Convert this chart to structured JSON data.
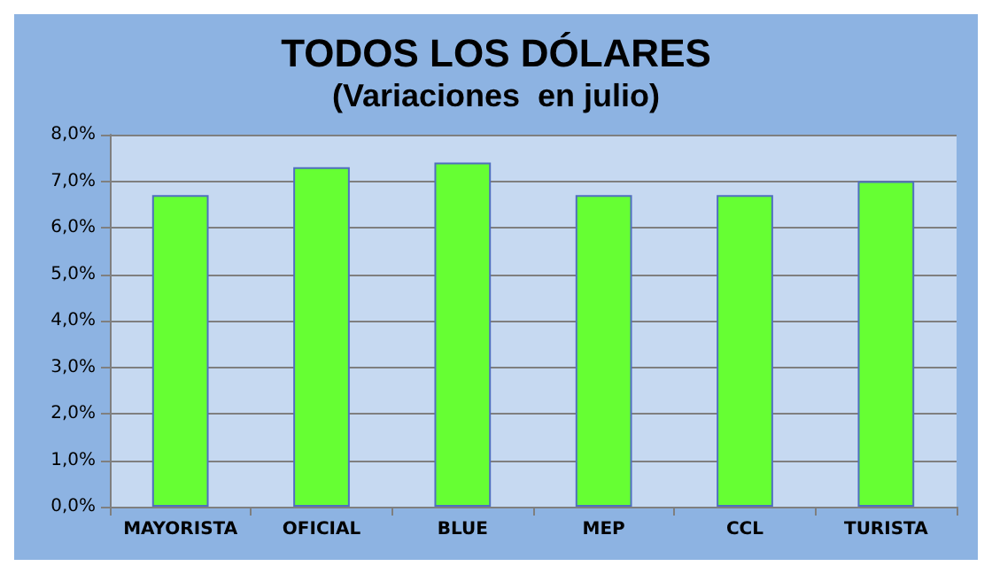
{
  "chart_data": {
    "type": "bar",
    "title": "TODOS LOS DÓLARES",
    "subtitle": "(Variaciones  en julio)",
    "categories": [
      "MAYORISTA",
      "OFICIAL",
      "BLUE",
      "MEP",
      "CCL",
      "TURISTA"
    ],
    "values": [
      6.7,
      7.3,
      7.4,
      6.7,
      6.7,
      7.0
    ],
    "color": "#66ff33",
    "ylim": [
      0,
      8
    ],
    "yticks": [
      {
        "value": 0,
        "label": "0,0%"
      },
      {
        "value": 1,
        "label": "1,0%"
      },
      {
        "value": 2,
        "label": "2,0%"
      },
      {
        "value": 3,
        "label": "3,0%"
      },
      {
        "value": 4,
        "label": "4,0%"
      },
      {
        "value": 5,
        "label": "5,0%"
      },
      {
        "value": 6,
        "label": "6,0%"
      },
      {
        "value": 7,
        "label": "7,0%"
      },
      {
        "value": 8,
        "label": "8,0%"
      }
    ],
    "grid": "y"
  }
}
